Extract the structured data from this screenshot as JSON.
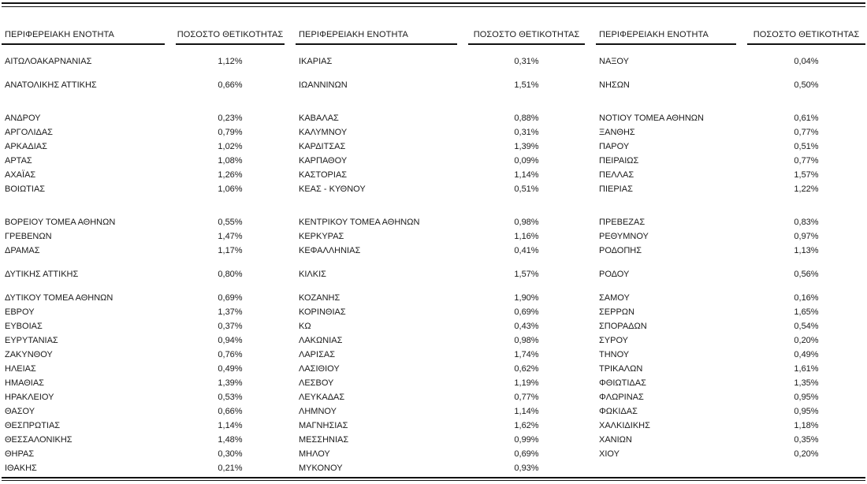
{
  "table": {
    "header": {
      "region": "ΠΕΡΙΦΕΡΕΙΑΚΗ ΕΝΟΤΗΤΑ",
      "positivity": "ΠΟΣΟΣΤΟ ΘΕΤΙΚΟΤΗΤΑΣ"
    },
    "rows": [
      [
        "ΑΙΤΩΛΟΑΚΑΡΝΑΝΙΑΣ",
        "1,12%",
        "ΙΚΑΡΙΑΣ",
        "0,31%",
        "ΝΑΞΟΥ",
        "0,04%"
      ],
      [],
      [
        "ΑΝΑΤΟΛΙΚΗΣ ΑΤΤΙΚΗΣ",
        "0,66%",
        "ΙΩΑΝΝΙΝΩΝ",
        "1,51%",
        "ΝΗΣΩΝ",
        "0,50%"
      ],
      [],
      [],
      [
        "ΑΝΔΡΟΥ",
        "0,23%",
        "ΚΑΒΑΛΑΣ",
        "0,88%",
        "ΝΟΤΙΟΥ ΤΟΜΕΑ ΑΘΗΝΩΝ",
        "0,61%"
      ],
      [
        "ΑΡΓΟΛΙΔΑΣ",
        "0,79%",
        "ΚΑΛΥΜΝΟΥ",
        "0,31%",
        "ΞΑΝΘΗΣ",
        "0,77%"
      ],
      [
        "ΑΡΚΑΔΙΑΣ",
        "1,02%",
        "ΚΑΡΔΙΤΣΑΣ",
        "1,39%",
        "ΠΑΡΟΥ",
        "0,51%"
      ],
      [
        "ΑΡΤΑΣ",
        "1,08%",
        "ΚΑΡΠΑΘΟΥ",
        "0,09%",
        "ΠΕΙΡΑΙΩΣ",
        "0,77%"
      ],
      [
        "ΑΧΑΪΑΣ",
        "1,26%",
        "ΚΑΣΤΟΡΙΑΣ",
        "1,14%",
        "ΠΕΛΛΑΣ",
        "1,57%"
      ],
      [
        "ΒΟΙΩΤΙΑΣ",
        "1,06%",
        "ΚΕΑΣ - ΚΥΘΝΟΥ",
        "0,51%",
        "ΠΙΕΡΙΑΣ",
        "1,22%"
      ],
      [],
      [],
      [
        "ΒΟΡΕΙΟΥ ΤΟΜΕΑ ΑΘΗΝΩΝ",
        "0,55%",
        "ΚΕΝΤΡΙΚΟΥ ΤΟΜΕΑ ΑΘΗΝΩΝ",
        "0,98%",
        "ΠΡΕΒΕΖΑΣ",
        "0,83%"
      ],
      [
        "ΓΡΕΒΕΝΩΝ",
        "1,47%",
        "ΚΕΡΚΥΡΑΣ",
        "1,16%",
        "ΡΕΘΥΜΝΟΥ",
        "0,97%"
      ],
      [
        "ΔΡΑΜΑΣ",
        "1,17%",
        "ΚΕΦΑΛΛΗΝΙΑΣ",
        "0,41%",
        "ΡΟΔΟΠΗΣ",
        "1,13%"
      ],
      [],
      [
        "ΔΥΤΙΚΗΣ ΑΤΤΙΚΗΣ",
        "0,80%",
        "ΚΙΛΚΙΣ",
        "1,57%",
        "ΡΟΔΟΥ",
        "0,56%"
      ],
      [],
      [
        "ΔΥΤΙΚΟΥ ΤΟΜΕΑ ΑΘΗΝΩΝ",
        "0,69%",
        "ΚΟΖΑΝΗΣ",
        "1,90%",
        "ΣΑΜΟΥ",
        "0,16%"
      ],
      [
        "ΕΒΡΟΥ",
        "1,37%",
        "ΚΟΡΙΝΘΙΑΣ",
        "0,69%",
        "ΣΕΡΡΩΝ",
        "1,65%"
      ],
      [
        "ΕΥΒΟΙΑΣ",
        "0,37%",
        "ΚΩ",
        "0,43%",
        "ΣΠΟΡΑΔΩΝ",
        "0,54%"
      ],
      [
        "ΕΥΡΥΤΑΝΙΑΣ",
        "0,94%",
        "ΛΑΚΩΝΙΑΣ",
        "0,98%",
        "ΣΥΡΟΥ",
        "0,20%"
      ],
      [
        "ΖΑΚΥΝΘΟΥ",
        "0,76%",
        "ΛΑΡΙΣΑΣ",
        "1,74%",
        "ΤΗΝΟΥ",
        "0,49%"
      ],
      [
        "ΗΛΕΙΑΣ",
        "0,49%",
        "ΛΑΣΙΘΙΟΥ",
        "0,62%",
        "ΤΡΙΚΑΛΩΝ",
        "1,61%"
      ],
      [
        "ΗΜΑΘΙΑΣ",
        "1,39%",
        "ΛΕΣΒΟΥ",
        "1,19%",
        "ΦΘΙΩΤΙΔΑΣ",
        "1,35%"
      ],
      [
        "ΗΡΑΚΛΕΙΟΥ",
        "0,53%",
        "ΛΕΥΚΑΔΑΣ",
        "0,77%",
        "ΦΛΩΡΙΝΑΣ",
        "0,95%"
      ],
      [
        "ΘΑΣΟΥ",
        "0,66%",
        "ΛΗΜΝΟΥ",
        "1,14%",
        "ΦΩΚΙΔΑΣ",
        "0,95%"
      ],
      [
        "ΘΕΣΠΡΩΤΙΑΣ",
        "1,14%",
        "ΜΑΓΝΗΣΙΑΣ",
        "1,62%",
        "ΧΑΛΚΙΔΙΚΗΣ",
        "1,18%"
      ],
      [
        "ΘΕΣΣΑΛΟΝΙΚΗΣ",
        "1,48%",
        "ΜΕΣΣΗΝΙΑΣ",
        "0,99%",
        "ΧΑΝΙΩΝ",
        "0,35%"
      ],
      [
        "ΘΗΡΑΣ",
        "0,30%",
        "ΜΗΛΟΥ",
        "0,69%",
        "ΧΙΟΥ",
        "0,20%"
      ],
      [
        "ΙΘΑΚΗΣ",
        "0,21%",
        "ΜΥΚΟΝΟΥ",
        "0,93%",
        "",
        ""
      ]
    ]
  }
}
